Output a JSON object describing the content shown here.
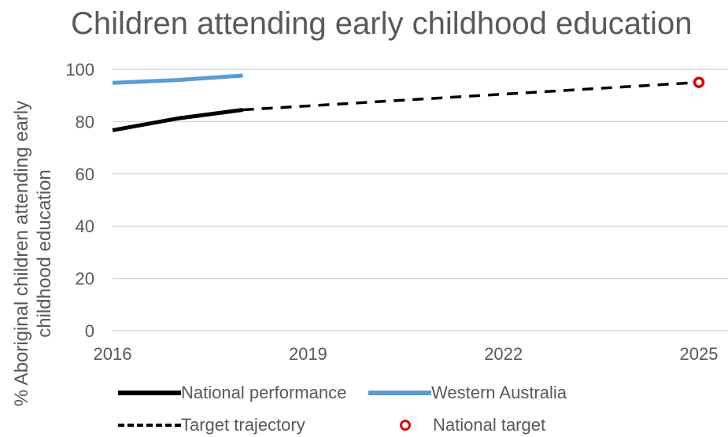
{
  "chart_data": {
    "type": "line",
    "title": "Children attending early childhood education",
    "xlabel": "",
    "ylabel": "% Aboriginal children attending early childhood education",
    "ylabel_lines": [
      "% Aboriginal children attending early",
      "childhood education"
    ],
    "xlim": [
      2016,
      2025
    ],
    "ylim": [
      0,
      100
    ],
    "x_ticks": [
      "2016",
      "2019",
      "2022",
      "2025"
    ],
    "y_ticks": [
      "0",
      "20",
      "40",
      "60",
      "80",
      "100"
    ],
    "grid": "horizontal",
    "legend_position": "bottom",
    "series": [
      {
        "name": "National performance",
        "style": "solid",
        "color": "#000000",
        "points": [
          [
            2016,
            76.7
          ],
          [
            2017,
            81.2
          ],
          [
            2018,
            84.5
          ]
        ]
      },
      {
        "name": "Western Australia",
        "style": "solid",
        "color": "#5b9bd5",
        "points": [
          [
            2016,
            94.8
          ],
          [
            2017,
            95.9
          ],
          [
            2018,
            97.6
          ]
        ]
      },
      {
        "name": "Target trajectory",
        "style": "dashed",
        "color": "#000000",
        "points": [
          [
            2018,
            84.5
          ],
          [
            2025,
            95
          ]
        ]
      },
      {
        "name": "National target",
        "style": "marker",
        "color": "#e00000",
        "points": [
          [
            2025,
            95
          ]
        ]
      }
    ]
  }
}
